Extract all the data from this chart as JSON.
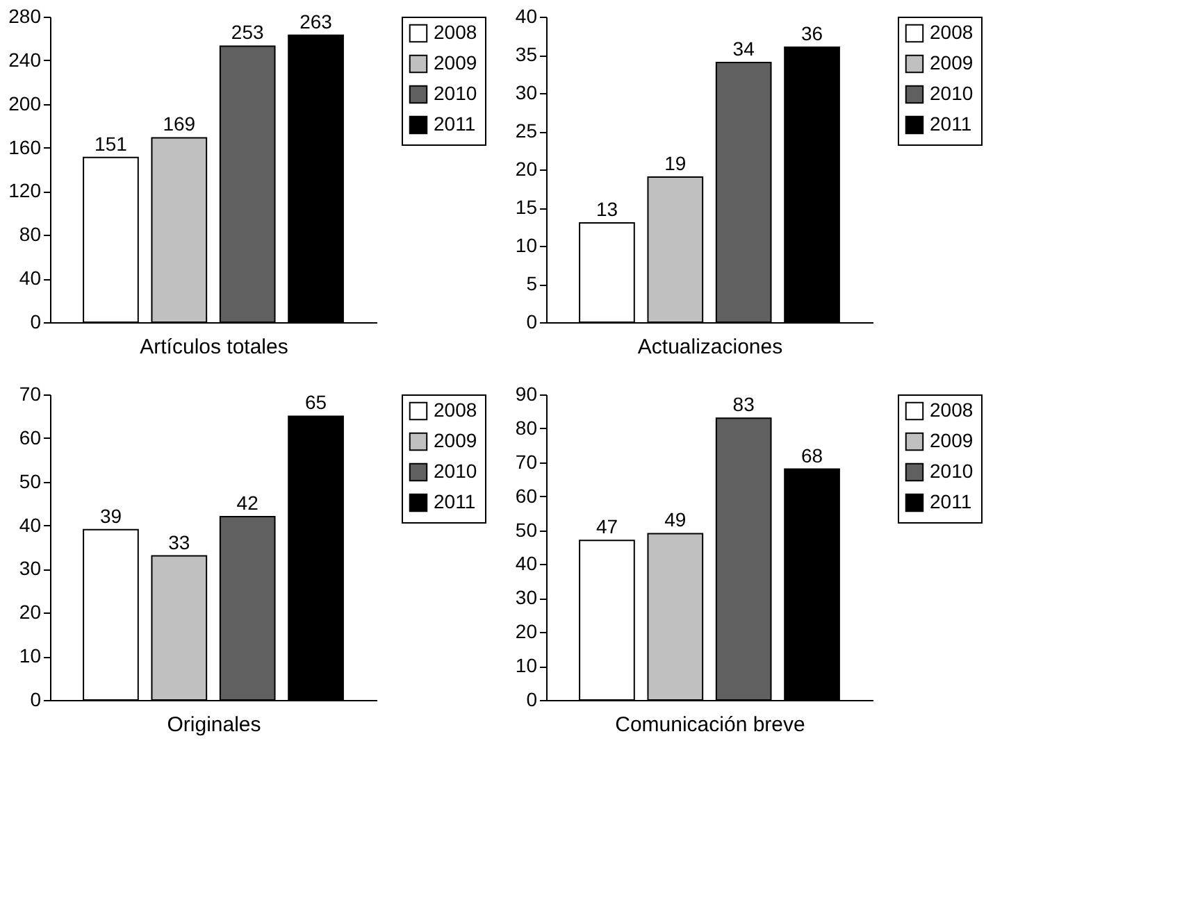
{
  "chart_data": [
    {
      "type": "bar",
      "xlabel": "Artículos totales",
      "categories": [
        null
      ],
      "legend": "right",
      "data_labels": true,
      "grid": false,
      "ylim": [
        0,
        280
      ],
      "yticks": [
        0,
        40,
        80,
        120,
        160,
        200,
        240,
        280
      ],
      "series": [
        {
          "name": "2008",
          "color": "#ffffff",
          "values": [
            151
          ]
        },
        {
          "name": "2009",
          "color": "#c0c0c0",
          "values": [
            169
          ]
        },
        {
          "name": "2010",
          "color": "#606060",
          "values": [
            253
          ]
        },
        {
          "name": "2011",
          "color": "#000000",
          "values": [
            263
          ]
        }
      ]
    },
    {
      "type": "bar",
      "xlabel": "Actualizaciones",
      "categories": [
        null
      ],
      "legend": "right",
      "data_labels": true,
      "grid": false,
      "ylim": [
        0,
        40
      ],
      "yticks": [
        0,
        5,
        10,
        15,
        20,
        25,
        30,
        35,
        40
      ],
      "series": [
        {
          "name": "2008",
          "color": "#ffffff",
          "values": [
            13
          ]
        },
        {
          "name": "2009",
          "color": "#c0c0c0",
          "values": [
            19
          ]
        },
        {
          "name": "2010",
          "color": "#606060",
          "values": [
            34
          ]
        },
        {
          "name": "2011",
          "color": "#000000",
          "values": [
            36
          ]
        }
      ]
    },
    {
      "type": "bar",
      "xlabel": "Originales",
      "categories": [
        null
      ],
      "legend": "right",
      "data_labels": true,
      "grid": false,
      "ylim": [
        0,
        70
      ],
      "yticks": [
        0,
        10,
        20,
        30,
        40,
        50,
        60,
        70
      ],
      "series": [
        {
          "name": "2008",
          "color": "#ffffff",
          "values": [
            39
          ]
        },
        {
          "name": "2009",
          "color": "#c0c0c0",
          "values": [
            33
          ]
        },
        {
          "name": "2010",
          "color": "#606060",
          "values": [
            42
          ]
        },
        {
          "name": "2011",
          "color": "#000000",
          "values": [
            65
          ]
        }
      ]
    },
    {
      "type": "bar",
      "xlabel": "Comunicación breve",
      "categories": [
        null
      ],
      "legend": "right",
      "data_labels": true,
      "grid": false,
      "ylim": [
        0,
        90
      ],
      "yticks": [
        0,
        10,
        20,
        30,
        40,
        50,
        60,
        70,
        80,
        90
      ],
      "series": [
        {
          "name": "2008",
          "color": "#ffffff",
          "values": [
            47
          ]
        },
        {
          "name": "2009",
          "color": "#c0c0c0",
          "values": [
            49
          ]
        },
        {
          "name": "2010",
          "color": "#606060",
          "values": [
            83
          ]
        },
        {
          "name": "2011",
          "color": "#000000",
          "values": [
            68
          ]
        }
      ]
    }
  ]
}
